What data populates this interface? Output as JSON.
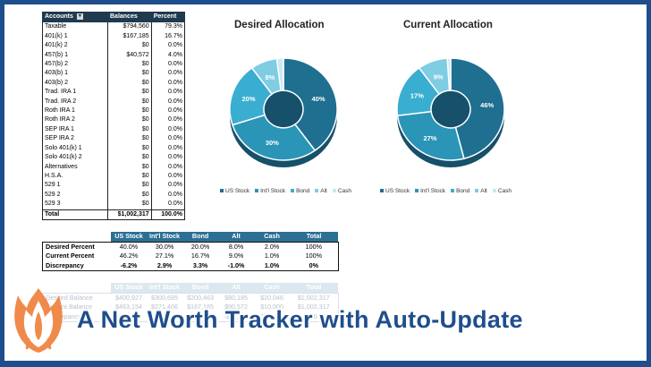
{
  "accounts": {
    "headers": [
      "Accounts",
      "Balances",
      "Percent"
    ],
    "rows": [
      [
        "Taxable",
        "$794,560",
        "79.3%"
      ],
      [
        "401(k) 1",
        "$167,185",
        "16.7%"
      ],
      [
        "401(k) 2",
        "$0",
        "0.0%"
      ],
      [
        "457(b) 1",
        "$40,572",
        "4.0%"
      ],
      [
        "457(b) 2",
        "$0",
        "0.0%"
      ],
      [
        "403(b) 1",
        "$0",
        "0.0%"
      ],
      [
        "403(b) 2",
        "$0",
        "0.0%"
      ],
      [
        "Trad. IRA 1",
        "$0",
        "0.0%"
      ],
      [
        "Trad. IRA 2",
        "$0",
        "0.0%"
      ],
      [
        "Roth IRA 1",
        "$0",
        "0.0%"
      ],
      [
        "Roth IRA 2",
        "$0",
        "0.0%"
      ],
      [
        "SEP IRA 1",
        "$0",
        "0.0%"
      ],
      [
        "SEP IRA 2",
        "$0",
        "0.0%"
      ],
      [
        "Solo 401(k) 1",
        "$0",
        "0.0%"
      ],
      [
        "Solo 401(k) 2",
        "$0",
        "0.0%"
      ],
      [
        "Alternatives",
        "$0",
        "0.0%"
      ],
      [
        "H.S.A.",
        "$0",
        "0.0%"
      ],
      [
        "529 1",
        "$0",
        "0.0%"
      ],
      [
        "529 2",
        "$0",
        "0.0%"
      ],
      [
        "529 3",
        "$0",
        "0.0%"
      ]
    ],
    "total": [
      "Total",
      "$1,002,317",
      "100.0%"
    ]
  },
  "colors": {
    "us_stock": "#1f6f91",
    "intl_stock": "#2b95b8",
    "bond": "#3aaed0",
    "alt": "#7fcde3",
    "cash": "#c9e9f3",
    "brand": "#1f4e8c"
  },
  "chart_data": [
    {
      "type": "pie",
      "title": "Desired Allocation",
      "categories": [
        "US Stock",
        "Int'l Stock",
        "Bond",
        "Alt",
        "Cash"
      ],
      "values": [
        40,
        30,
        20,
        8,
        2
      ],
      "labels": [
        "40%",
        "30%",
        "20%",
        "8%",
        ""
      ]
    },
    {
      "type": "pie",
      "title": "Current Allocation",
      "categories": [
        "US Stock",
        "Int'l Stock",
        "Bond",
        "Alt",
        "Cash"
      ],
      "values": [
        46,
        27,
        17,
        9,
        1
      ],
      "labels": [
        "46%",
        "27%",
        "17%",
        "9%",
        ""
      ]
    }
  ],
  "allocation": {
    "headers": [
      "US Stock",
      "Int'l Stock",
      "Bond",
      "Alt",
      "Cash",
      "Total"
    ],
    "rows": [
      {
        "label": "Desired Percent",
        "values": [
          "40.0%",
          "30.0%",
          "20.0%",
          "8.0%",
          "2.0%",
          "100%"
        ]
      },
      {
        "label": "Current Percent",
        "values": [
          "46.2%",
          "27.1%",
          "16.7%",
          "9.0%",
          "1.0%",
          "100%"
        ]
      },
      {
        "label": "Discrepancy",
        "values": [
          "-6.2%",
          "2.9%",
          "3.3%",
          "-1.0%",
          "1.0%",
          "0%"
        ]
      }
    ]
  },
  "balances": {
    "headers": [
      "US Stock",
      "Int'l Stock",
      "Bond",
      "Alt",
      "Cash",
      "Total"
    ],
    "rows": [
      {
        "label": "Desired Balance",
        "values": [
          "$400,927",
          "$300,695",
          "$200,463",
          "$80,185",
          "$20,046",
          "$1,002,317"
        ]
      },
      {
        "label": "Current Balance",
        "values": [
          "$463,154",
          "$271,406",
          "$167,185",
          "$90,572",
          "$10,000",
          "$1,002,317"
        ]
      },
      {
        "label": "Discrepancy",
        "values": [
          "-$62,227",
          "$29,289",
          "$33,278",
          "-$10,387",
          "$10,046",
          "$0"
        ]
      }
    ]
  },
  "headline": "A Net Worth Tracker with Auto-Update"
}
